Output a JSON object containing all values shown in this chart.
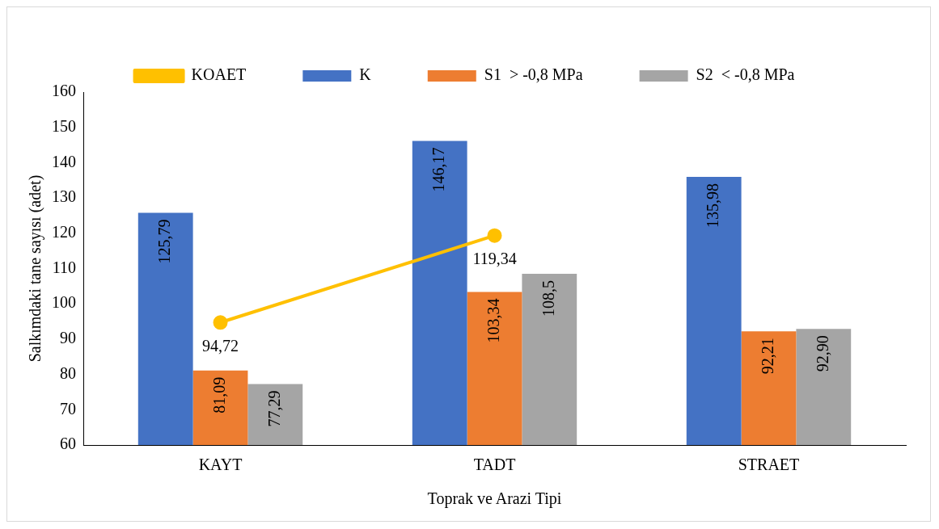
{
  "chart_data": {
    "type": "bar",
    "xlabel": "Toprak ve Arazi Tipi",
    "ylabel": "Salkımdaki tane sayısı (adet)",
    "categories": [
      "KAYT",
      "TADT",
      "STRAET"
    ],
    "series": [
      {
        "name": "K",
        "color": "#4472c4",
        "values": [
          125.79,
          146.17,
          135.98
        ],
        "value_labels": [
          "125,79",
          "146,17",
          "135,98"
        ]
      },
      {
        "name": "S1  > -0,8 MPa",
        "color": "#ed7d31",
        "values": [
          81.09,
          103.34,
          92.21
        ],
        "value_labels": [
          "81,09",
          "103,34",
          "92,21"
        ]
      },
      {
        "name": "S2  < -0,8 MPa",
        "color": "#a5a5a5",
        "values": [
          77.29,
          108.5,
          92.9
        ],
        "value_labels": [
          "77,29",
          "108,5",
          "92,90"
        ]
      },
      {
        "name": "KOAET",
        "type": "line",
        "color": "#ffc000",
        "values": [
          94.72,
          119.34,
          null
        ],
        "value_labels": [
          "94,72",
          "119,34",
          null
        ]
      }
    ],
    "ylim": [
      60,
      160
    ],
    "yticks": [
      60,
      70,
      80,
      90,
      100,
      110,
      120,
      130,
      140,
      150,
      160
    ],
    "grid": false,
    "legend": "top",
    "marker": "circle"
  }
}
